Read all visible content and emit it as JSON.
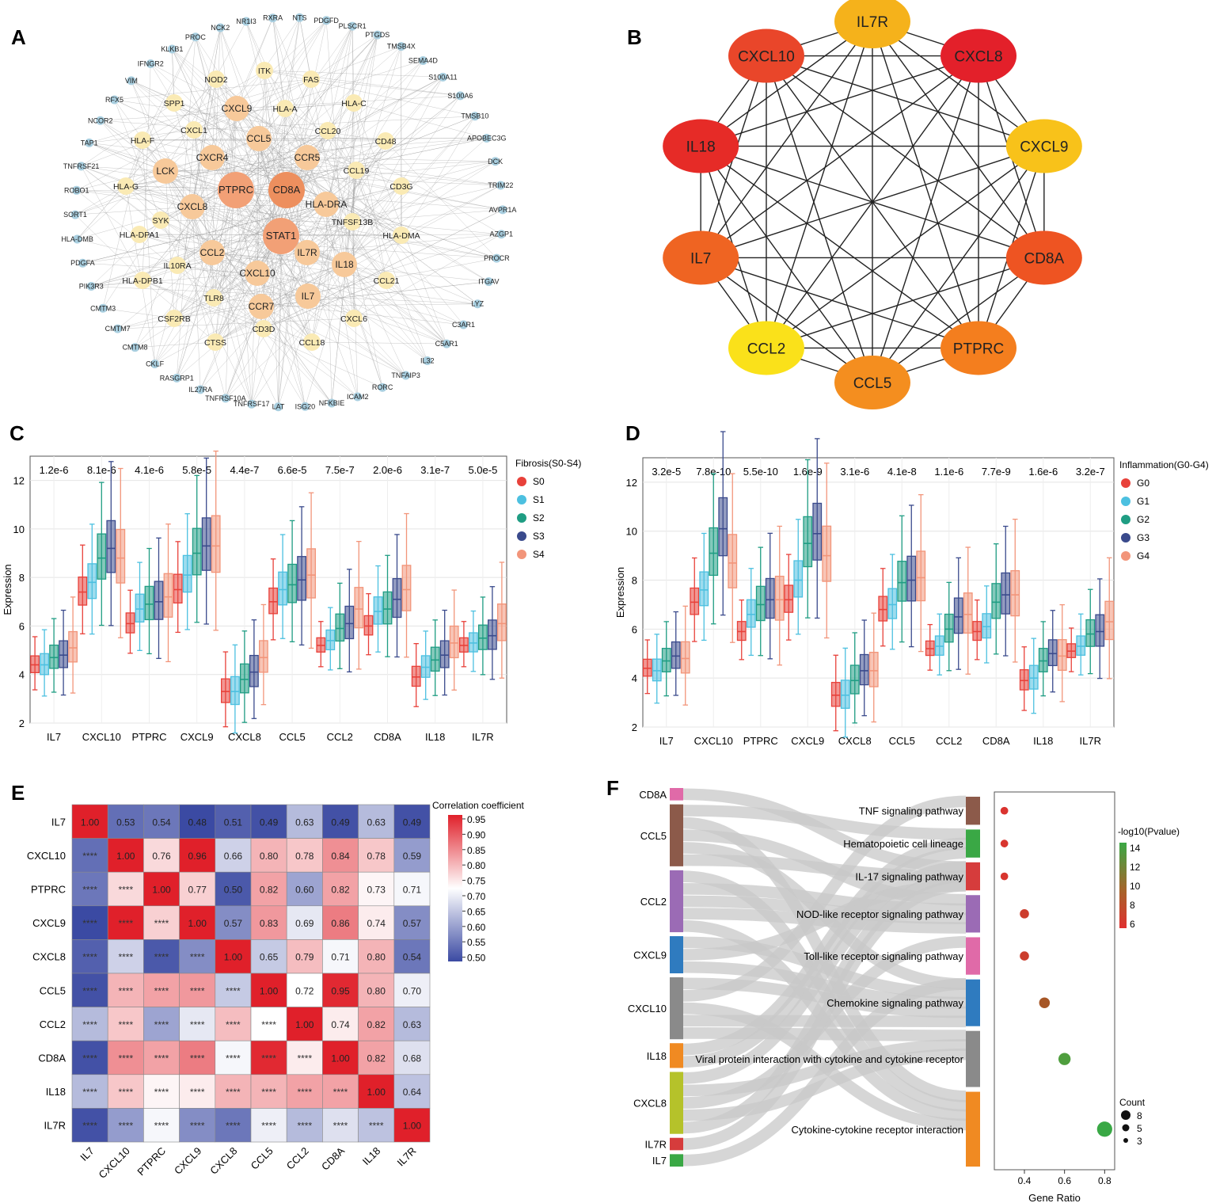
{
  "panels": {
    "A": "A",
    "B": "B",
    "C": "C",
    "D": "D",
    "E": "E",
    "F": "F"
  },
  "network_a": {
    "inner": [
      {
        "label": "PTPRC",
        "tier": 1
      },
      {
        "label": "CD8A",
        "tier": 1
      },
      {
        "label": "STAT1",
        "tier": 1
      },
      {
        "label": "CXCL8",
        "tier": 2
      },
      {
        "label": "CCL5",
        "tier": 2
      },
      {
        "label": "CCR5",
        "tier": 2
      },
      {
        "label": "CXCR4",
        "tier": 2
      },
      {
        "label": "HLA-DRA",
        "tier": 2
      },
      {
        "label": "CXCL10",
        "tier": 2
      },
      {
        "label": "CCL2",
        "tier": 2
      },
      {
        "label": "LCK",
        "tier": 2
      },
      {
        "label": "IL7R",
        "tier": 2
      },
      {
        "label": "IL18",
        "tier": 2
      },
      {
        "label": "CCR7",
        "tier": 2
      },
      {
        "label": "IL7",
        "tier": 2
      },
      {
        "label": "CXCL9",
        "tier": 2
      },
      {
        "label": "SYK",
        "tier": 3
      },
      {
        "label": "IL10RA",
        "tier": 3
      },
      {
        "label": "CCL20",
        "tier": 3
      },
      {
        "label": "HLA-A",
        "tier": 3
      },
      {
        "label": "TNFSF13B",
        "tier": 3
      },
      {
        "label": "TLR8",
        "tier": 3
      },
      {
        "label": "CD3D",
        "tier": 3
      },
      {
        "label": "CXCL1",
        "tier": 3
      },
      {
        "label": "NOD2",
        "tier": 3
      },
      {
        "label": "ITK",
        "tier": 3
      },
      {
        "label": "FAS",
        "tier": 3
      },
      {
        "label": "SPP1",
        "tier": 3
      },
      {
        "label": "HLA-C",
        "tier": 3
      },
      {
        "label": "HLA-F",
        "tier": 3
      },
      {
        "label": "CD48",
        "tier": 3
      },
      {
        "label": "CCL19",
        "tier": 3
      },
      {
        "label": "HLA-G",
        "tier": 3
      },
      {
        "label": "CD3G",
        "tier": 3
      },
      {
        "label": "HLA-DPA1",
        "tier": 3
      },
      {
        "label": "HLA-DMA",
        "tier": 3
      },
      {
        "label": "HLA-DPB1",
        "tier": 3
      },
      {
        "label": "CCL21",
        "tier": 3
      },
      {
        "label": "CSF2RB",
        "tier": 3
      },
      {
        "label": "CXCL6",
        "tier": 3
      },
      {
        "label": "CTSS",
        "tier": 3
      },
      {
        "label": "CCL18",
        "tier": 3
      }
    ],
    "outer": [
      "NTS",
      "PDGFD",
      "PLSCR1",
      "PTGDS",
      "TMSB4X",
      "SEMA4D",
      "S100A11",
      "S100A6",
      "TMSB10",
      "APOBEC3G",
      "DCK",
      "TRIM22",
      "AVPR1A",
      "AZGP1",
      "PROCR",
      "ITGAV",
      "LYZ",
      "C3AR1",
      "C5AR1",
      "IL32",
      "TNFAIP3",
      "RORC",
      "ICAM2",
      "NFKBIE",
      "ISG20",
      "LAT",
      "TNFRSF17",
      "TNFRSF10A",
      "IL27RA",
      "RASGRP1",
      "CKLF",
      "CMTM8",
      "CMTM7",
      "CMTM3",
      "PIK3R3",
      "PDGFA",
      "HLA-DMB",
      "SORT1",
      "ROBO1",
      "TNFRSF21",
      "TAP1",
      "NCOR2",
      "RFX5",
      "VIM",
      "IFNGR2",
      "KLKB1",
      "PROC",
      "NCK2",
      "NR1I3",
      "RXRA"
    ]
  },
  "network_b": {
    "nodes": [
      {
        "label": "IL7R",
        "color": "#f5b21b"
      },
      {
        "label": "CXCL8",
        "color": "#e3202a"
      },
      {
        "label": "CXCL9",
        "color": "#f8c21a"
      },
      {
        "label": "CD8A",
        "color": "#ee5422"
      },
      {
        "label": "PTPRC",
        "color": "#f47e1e"
      },
      {
        "label": "CCL5",
        "color": "#f48e1f"
      },
      {
        "label": "CCL2",
        "color": "#fae11a"
      },
      {
        "label": "IL7",
        "color": "#ef6422"
      },
      {
        "label": "IL18",
        "color": "#e62b27"
      },
      {
        "label": "CXCL10",
        "color": "#e9462a"
      }
    ]
  },
  "chart_data": [
    {
      "type": "box",
      "panel": "C",
      "ylabel": "Expression",
      "ylim": [
        2,
        13
      ],
      "yticks": [
        2,
        4,
        6,
        8,
        10,
        12
      ],
      "legend_title": "Fibrosis(S0-S4)",
      "groups": [
        "S0",
        "S1",
        "S2",
        "S3",
        "S4"
      ],
      "colors": [
        "#e8413a",
        "#4cc0e0",
        "#1f9d83",
        "#3a4a8c",
        "#f2957a"
      ],
      "genes": [
        "IL7",
        "CXCL10",
        "PTPRC",
        "CXCL9",
        "CXCL8",
        "CCL5",
        "CCL2",
        "CD8A",
        "IL18",
        "IL7R"
      ],
      "pvalues": [
        "1.2e-6",
        "8.1e-6",
        "4.1e-6",
        "5.8e-5",
        "4.4e-7",
        "6.6e-5",
        "7.5e-7",
        "2.0e-6",
        "3.1e-7",
        "5.0e-5"
      ],
      "medians": [
        [
          4.4,
          4.4,
          4.7,
          4.8,
          5.1
        ],
        [
          7.4,
          7.8,
          8.8,
          9.2,
          8.8
        ],
        [
          6.1,
          6.7,
          6.9,
          7.0,
          7.2
        ],
        [
          7.5,
          8.1,
          9.0,
          9.3,
          9.3
        ],
        [
          3.3,
          3.3,
          3.8,
          4.1,
          4.7
        ],
        [
          7.0,
          7.5,
          7.7,
          7.9,
          8.1
        ],
        [
          5.2,
          5.4,
          5.9,
          6.1,
          6.7
        ],
        [
          6.0,
          6.6,
          6.7,
          7.1,
          7.5
        ],
        [
          3.9,
          4.3,
          4.6,
          4.8,
          5.3
        ],
        [
          5.2,
          5.3,
          5.5,
          5.6,
          6.1
        ]
      ]
    },
    {
      "type": "box",
      "panel": "D",
      "ylabel": "Expression",
      "ylim": [
        2,
        13
      ],
      "yticks": [
        2,
        4,
        6,
        8,
        10,
        12
      ],
      "legend_title": "Inflammation(G0-G4)",
      "groups": [
        "G0",
        "G1",
        "G2",
        "G3",
        "G4"
      ],
      "colors": [
        "#e8413a",
        "#4cc0e0",
        "#1f9d83",
        "#3a4a8c",
        "#f2957a"
      ],
      "genes": [
        "IL7",
        "CXCL10",
        "PTPRC",
        "CXCL9",
        "CXCL8",
        "CCL5",
        "CCL2",
        "CD8A",
        "IL18",
        "IL7R"
      ],
      "pvalues": [
        "3.2e-5",
        "7.8e-10",
        "5.5e-10",
        "1.6e-9",
        "3.1e-6",
        "4.1e-8",
        "1.1e-6",
        "7.7e-9",
        "1.6e-6",
        "3.2e-7"
      ],
      "medians": [
        [
          4.4,
          4.3,
          4.7,
          4.9,
          4.8
        ],
        [
          7.1,
          7.6,
          9.1,
          10.1,
          8.7
        ],
        [
          5.9,
          6.6,
          7.0,
          7.2,
          7.2
        ],
        [
          7.2,
          8.0,
          9.5,
          9.9,
          9.0
        ],
        [
          3.3,
          3.3,
          3.9,
          4.3,
          4.3
        ],
        [
          6.8,
          7.0,
          7.9,
          8.0,
          8.1
        ],
        [
          5.2,
          5.3,
          6.0,
          6.5,
          6.6
        ],
        [
          5.9,
          6.1,
          7.1,
          7.4,
          7.4
        ],
        [
          3.9,
          4.0,
          4.7,
          5.0,
          4.9
        ],
        [
          5.1,
          5.3,
          5.8,
          5.9,
          6.3
        ]
      ]
    },
    {
      "type": "heatmap",
      "panel": "E",
      "labels": [
        "IL7",
        "CXCL10",
        "PTPRC",
        "CXCL9",
        "CXCL8",
        "CCL5",
        "CCL2",
        "CD8A",
        "IL18",
        "IL7R"
      ],
      "values": [
        [
          1.0,
          0.53,
          0.54,
          0.48,
          0.51,
          0.49,
          0.63,
          0.49,
          0.63,
          0.49
        ],
        [
          0.53,
          1.0,
          0.76,
          0.96,
          0.66,
          0.8,
          0.78,
          0.84,
          0.78,
          0.59
        ],
        [
          0.54,
          0.76,
          1.0,
          0.77,
          0.5,
          0.82,
          0.6,
          0.82,
          0.73,
          0.71
        ],
        [
          0.48,
          0.96,
          0.77,
          1.0,
          0.57,
          0.83,
          0.69,
          0.86,
          0.74,
          0.57
        ],
        [
          0.51,
          0.66,
          0.5,
          0.57,
          1.0,
          0.65,
          0.79,
          0.71,
          0.8,
          0.54
        ],
        [
          0.49,
          0.8,
          0.82,
          0.83,
          0.65,
          1.0,
          0.72,
          0.95,
          0.8,
          0.7
        ],
        [
          0.63,
          0.78,
          0.6,
          0.69,
          0.79,
          0.72,
          1.0,
          0.74,
          0.82,
          0.63
        ],
        [
          0.49,
          0.84,
          0.82,
          0.86,
          0.71,
          0.95,
          0.74,
          1.0,
          0.82,
          0.68
        ],
        [
          0.63,
          0.78,
          0.73,
          0.74,
          0.8,
          0.8,
          0.82,
          0.82,
          1.0,
          0.64
        ],
        [
          0.49,
          0.59,
          0.71,
          0.57,
          0.54,
          0.7,
          0.63,
          0.68,
          0.64,
          1.0
        ]
      ],
      "sig_label": "****",
      "colorbar_title": "Correlation coefficient",
      "colorbar_ticks": [
        "0.95",
        "0.90",
        "0.85",
        "0.80",
        "0.75",
        "0.70",
        "0.65",
        "0.60",
        "0.55",
        "0.50"
      ],
      "vmin": 0.48,
      "vmax": 0.96
    },
    {
      "type": "sankey_dot",
      "panel": "F",
      "genes": [
        {
          "label": "CD8A",
          "color": "#e06aa8",
          "weight": 1
        },
        {
          "label": "CCL5",
          "color": "#8c5a4a",
          "weight": 5
        },
        {
          "label": "CCL2",
          "color": "#9b6bb5",
          "weight": 5
        },
        {
          "label": "CXCL9",
          "color": "#2f7bbf",
          "weight": 3
        },
        {
          "label": "CXCL10",
          "color": "#8a8a8a",
          "weight": 5
        },
        {
          "label": "IL18",
          "color": "#f08a22",
          "weight": 2
        },
        {
          "label": "CXCL8",
          "color": "#b5c22a",
          "weight": 5
        },
        {
          "label": "IL7R",
          "color": "#d63c3c",
          "weight": 1
        },
        {
          "label": "IL7",
          "color": "#3aa845",
          "weight": 1
        }
      ],
      "pathways": [
        {
          "label": "TNF signaling pathway",
          "color": "#8c5a4a",
          "weight": 3,
          "ratio": 0.3,
          "logp": 5.8,
          "count": 3
        },
        {
          "label": "Hematopoietic cell lineage",
          "color": "#3aa845",
          "weight": 3,
          "ratio": 0.3,
          "logp": 5.9,
          "count": 3
        },
        {
          "label": "IL-17 signaling pathway",
          "color": "#d63c3c",
          "weight": 3,
          "ratio": 0.3,
          "logp": 5.9,
          "count": 3
        },
        {
          "label": "NOD-like receptor signaling pathway",
          "color": "#9b6bb5",
          "weight": 4,
          "ratio": 0.4,
          "logp": 6.5,
          "count": 4
        },
        {
          "label": "Toll-like receptor signaling pathway",
          "color": "#e06aa8",
          "weight": 4,
          "ratio": 0.4,
          "logp": 6.6,
          "count": 4
        },
        {
          "label": "Chemokine signaling pathway",
          "color": "#2f7bbf",
          "weight": 5,
          "ratio": 0.5,
          "logp": 8.5,
          "count": 5
        },
        {
          "label": "Viral protein interaction with cytokine and cytokine receptor",
          "color": "#8a8a8a",
          "weight": 6,
          "ratio": 0.6,
          "logp": 13.5,
          "count": 6
        },
        {
          "label": "Cytokine-cytokine receptor interaction",
          "color": "#f08a22",
          "weight": 8,
          "ratio": 0.8,
          "logp": 14.6,
          "count": 8
        }
      ],
      "xlabel": "Gene Ratio",
      "xticks": [
        "0.4",
        "0.6",
        "0.8"
      ],
      "xlim": [
        0.25,
        0.85
      ],
      "colorbar_title": "-log10(Pvalue)",
      "colorbar_ticks": [
        "14",
        "12",
        "10",
        "8",
        "6"
      ],
      "size_title": "Count",
      "size_ticks": [
        "8",
        "5",
        "3"
      ]
    }
  ]
}
